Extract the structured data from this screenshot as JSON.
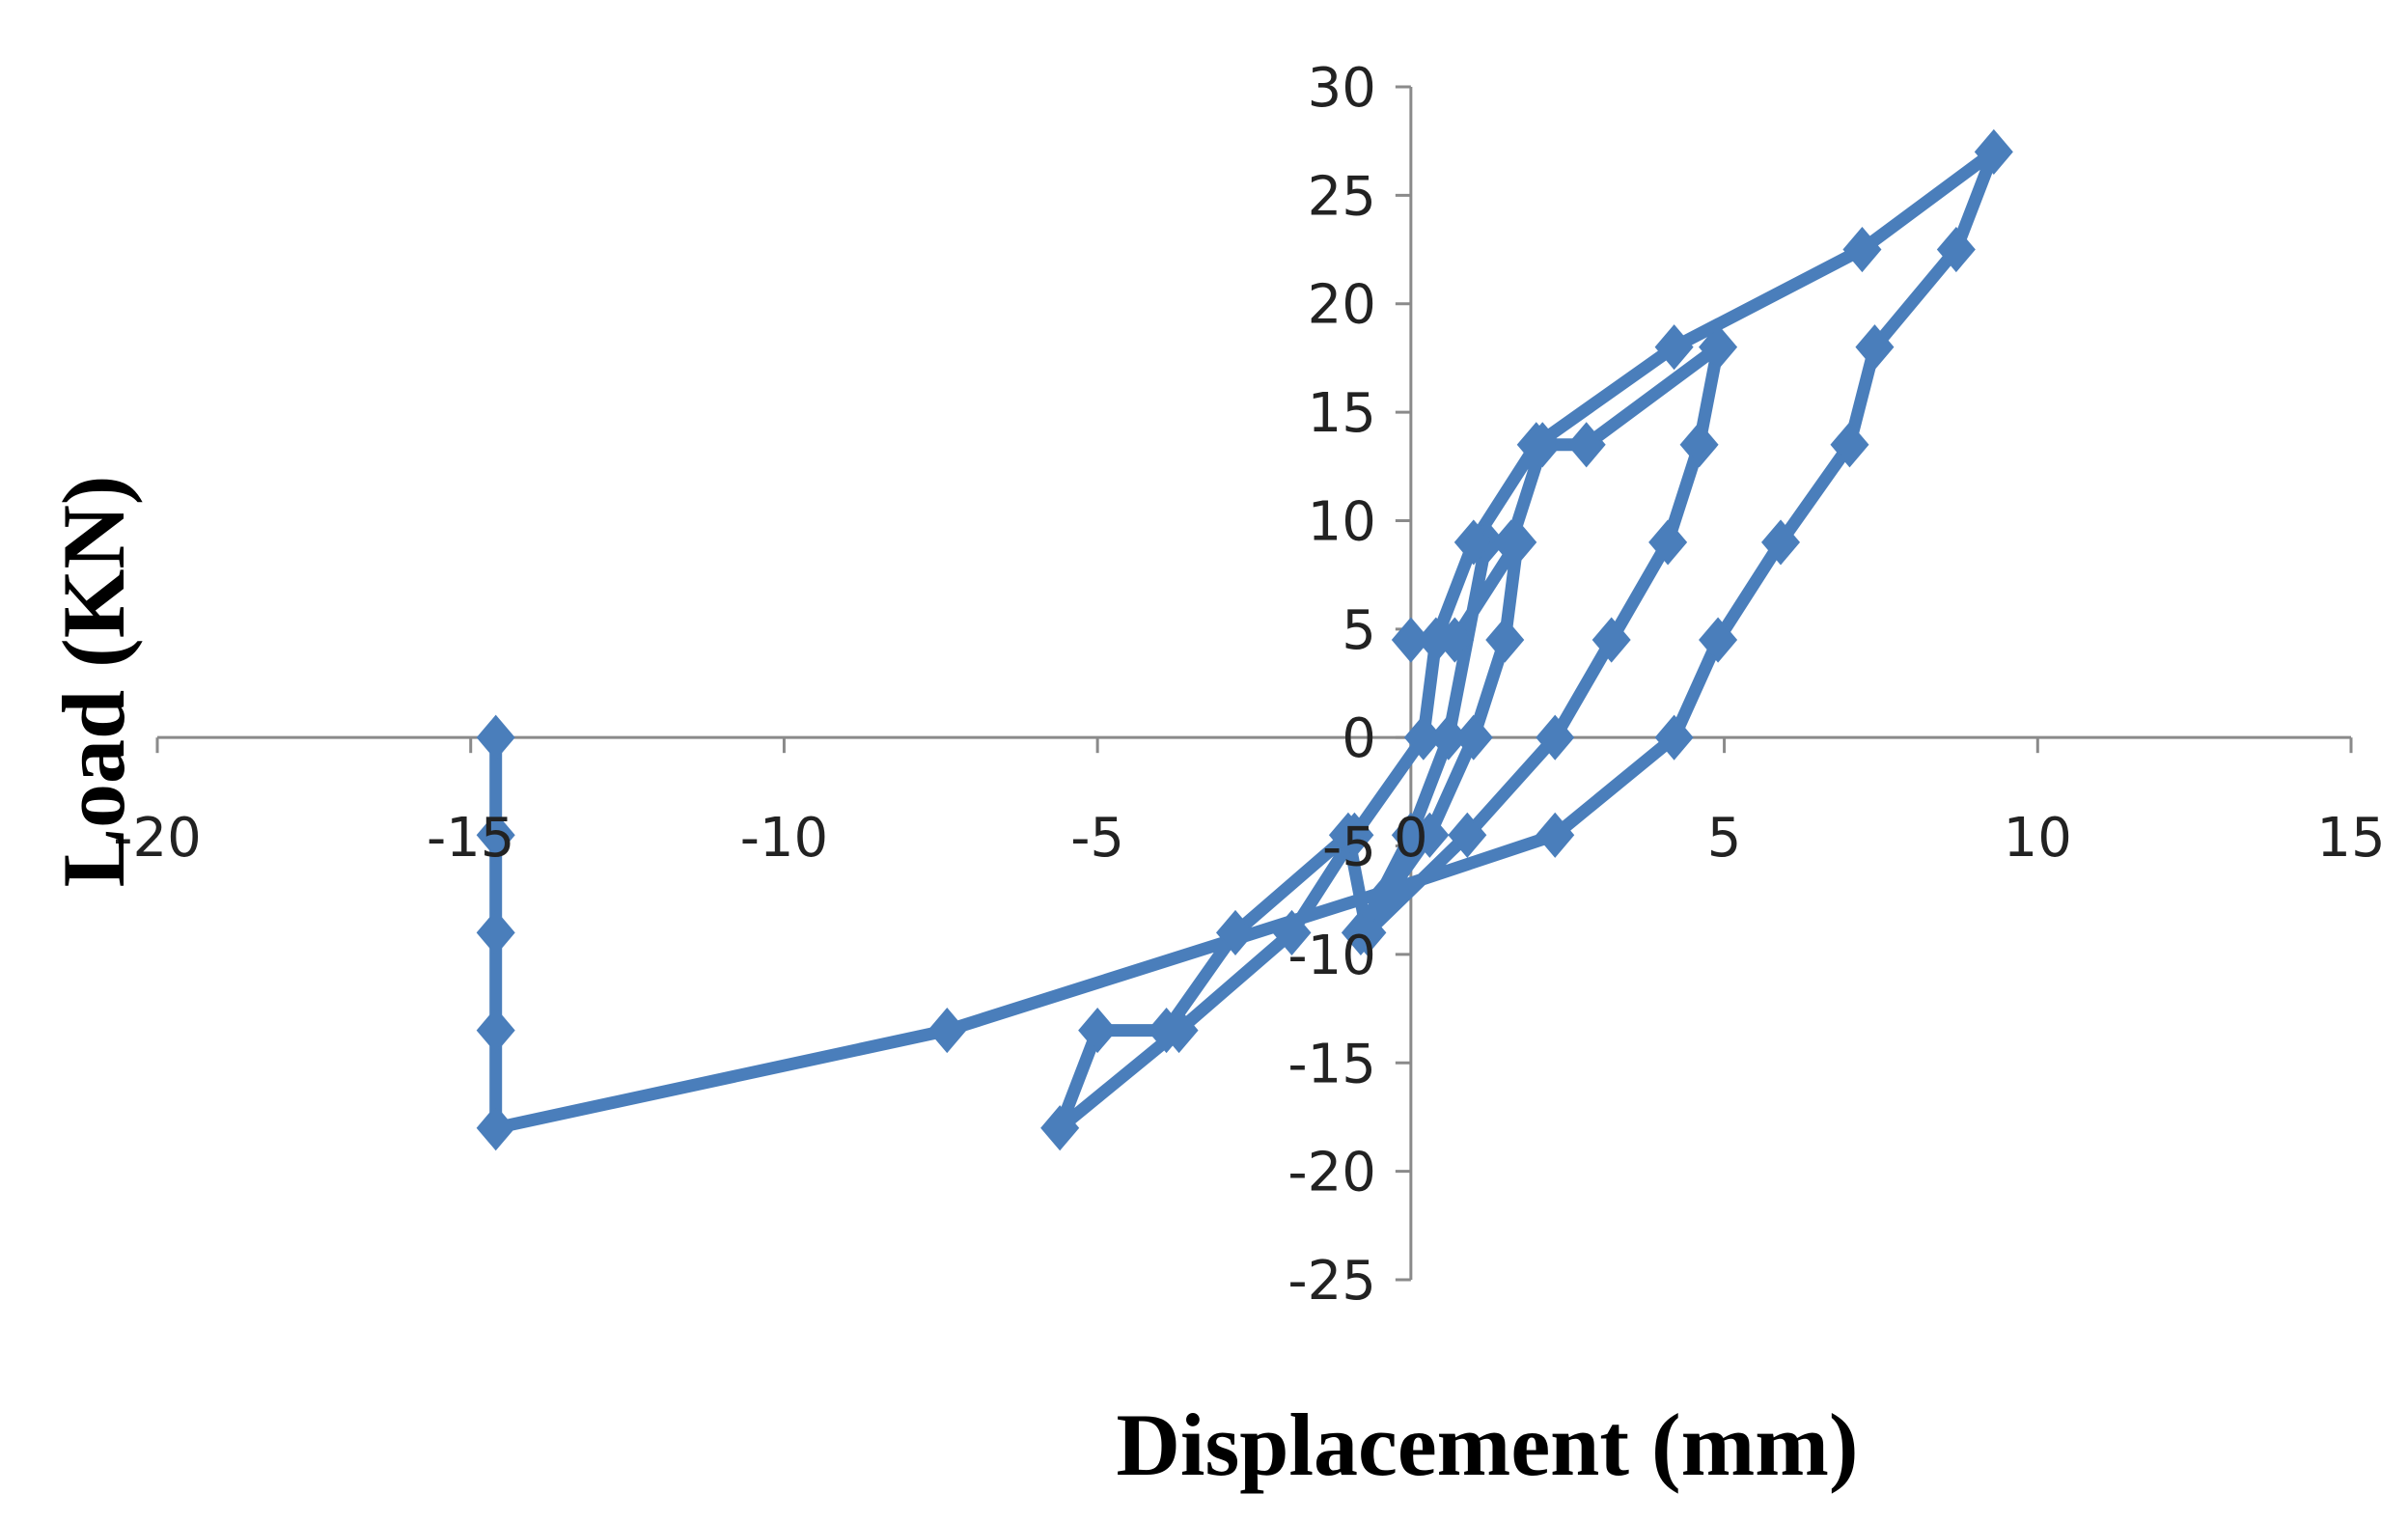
{
  "chart_data": {
    "type": "scatter",
    "title": "",
    "xlabel": "Displacement (mm)",
    "ylabel": "Load (KN)",
    "xlim": [
      -20,
      15
    ],
    "ylim": [
      -25,
      30
    ],
    "x_ticks": [
      -20,
      -15,
      -10,
      -5,
      0,
      5,
      10,
      15
    ],
    "y_ticks": [
      30,
      25,
      20,
      15,
      10,
      5,
      0,
      -5,
      -10,
      -15,
      -20,
      -25
    ],
    "x_tick_labels": [
      "-20",
      "-15",
      "-10",
      "-5",
      "0",
      "5",
      "10",
      "15"
    ],
    "y_tick_labels": [
      "30",
      "25",
      "20",
      "15",
      "10",
      "5",
      "0",
      "-5",
      "-10",
      "-15",
      "-20",
      "-25"
    ],
    "grid": false,
    "legend": "none",
    "color": "#4a7ebb",
    "marker": "diamond",
    "series": [
      {
        "x": [
          0.0,
          0.7,
          1.7,
          1.5,
          1.0,
          0.3,
          -0.8,
          0.0,
          0.6,
          1.2,
          1.6,
          2.1,
          2.8,
          4.9,
          4.6,
          4.1,
          3.2,
          2.3,
          0.9,
          -0.7,
          -1.0,
          -2.8,
          -3.9,
          -5.0,
          -5.6,
          -3.7,
          -1.9,
          -0.9,
          0.2,
          0.4,
          1.0,
          2.0,
          4.2,
          7.2,
          9.3,
          8.7,
          7.4,
          7.0,
          5.9,
          4.9,
          4.2,
          2.3,
          -0.3,
          -7.4,
          -14.6,
          -14.6,
          -14.6,
          -14.6,
          -14.6
        ],
        "y": [
          4.5,
          4.5,
          9.0,
          4.5,
          0.0,
          -4.5,
          -9.0,
          -4.5,
          0.0,
          9.0,
          9.0,
          13.5,
          13.5,
          18.0,
          13.5,
          9.0,
          4.5,
          0.0,
          -4.5,
          -9.0,
          -4.5,
          -9.0,
          -13.5,
          -13.5,
          -18.0,
          -13.5,
          -9.0,
          -4.5,
          0.0,
          4.5,
          9.0,
          13.5,
          18.0,
          22.5,
          27.0,
          22.5,
          18.0,
          13.5,
          9.0,
          4.5,
          0.0,
          -4.5,
          -7.0,
          -13.5,
          -18.0,
          -13.5,
          -9.0,
          -4.5,
          0.0
        ]
      }
    ]
  }
}
